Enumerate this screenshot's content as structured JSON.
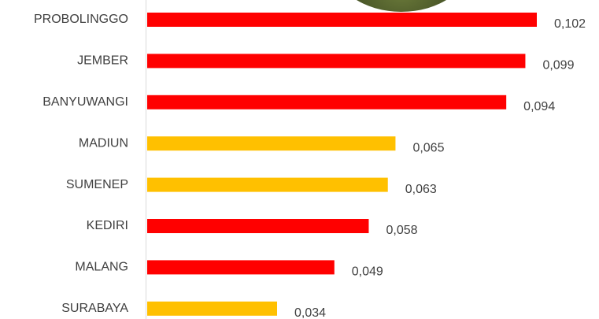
{
  "chart_data": {
    "type": "bar",
    "orientation": "horizontal",
    "categories": [
      "PROBOLINGGO",
      "JEMBER",
      "BANYUWANGI",
      "MADIUN",
      "SUMENEP",
      "KEDIRI",
      "MALANG",
      "SURABAYA"
    ],
    "values": [
      0.102,
      0.099,
      0.094,
      0.065,
      0.063,
      0.058,
      0.049,
      0.034
    ],
    "value_labels": [
      "0,102",
      "0,099",
      "0,094",
      "0,065",
      "0,063",
      "0,058",
      "0,049",
      "0,034"
    ],
    "colors": [
      "#ff0000",
      "#ff0000",
      "#ff0000",
      "#ffc000",
      "#ffc000",
      "#ff0000",
      "#ff0000",
      "#ffc000"
    ]
  }
}
